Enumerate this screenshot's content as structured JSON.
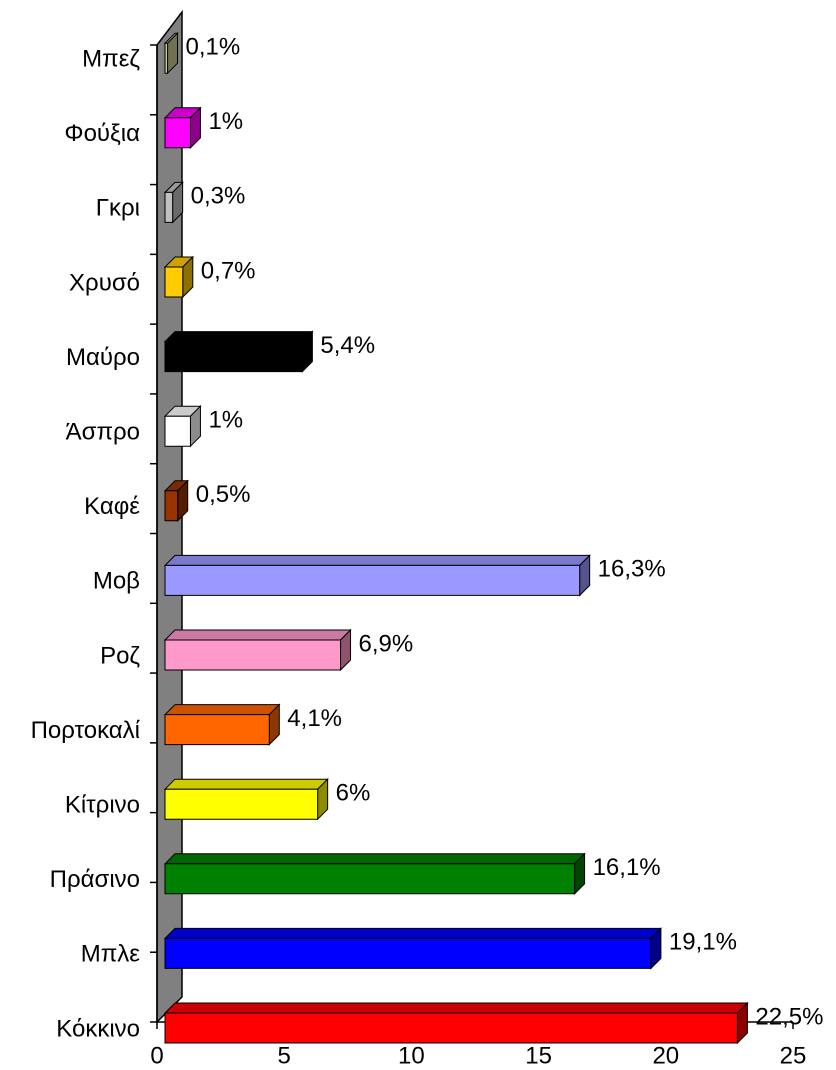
{
  "chart_data": {
    "type": "bar3d",
    "orientation": "horizontal",
    "categories": [
      "Κόκκινο",
      "Μπλε",
      "Πράσινο",
      "Κίτρινο",
      "Πορτοκαλί",
      "Ροζ",
      "Μοβ",
      "Καφέ",
      "Άσπρο",
      "Μαύρο",
      "Χρυσό",
      "Γκρι",
      "Φούξια",
      "Μπεζ"
    ],
    "values": [
      22.5,
      19.1,
      16.1,
      6,
      4.1,
      6.9,
      16.3,
      0.5,
      1,
      5.4,
      0.7,
      0.3,
      1,
      0.1
    ],
    "value_labels": [
      "22,5%",
      "19,1%",
      "16,1%",
      "6%",
      "4,1%",
      "6,9%",
      "16,3%",
      "0,5%",
      "1%",
      "5,4%",
      "0,7%",
      "0,3%",
      "1%",
      "0,1%"
    ],
    "colors": [
      "#ff0000",
      "#0000ff",
      "#008000",
      "#ffff00",
      "#ff6600",
      "#ff99cc",
      "#9999ff",
      "#993300",
      "#ffffff",
      "#000000",
      "#ffcc00",
      "#c0c0c0",
      "#ff00ff",
      "#cccc99"
    ],
    "xlim": [
      0,
      25
    ],
    "xticks": [
      0,
      5,
      10,
      15,
      20,
      25
    ]
  }
}
